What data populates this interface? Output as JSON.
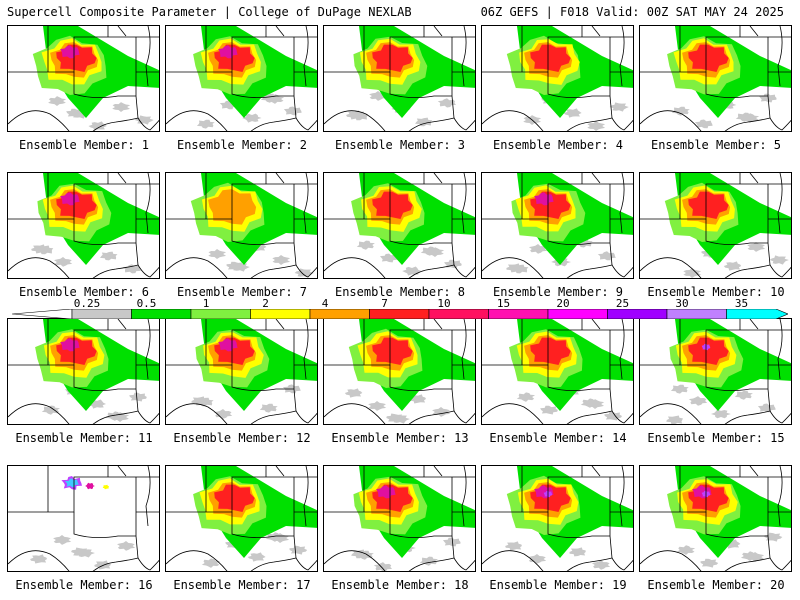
{
  "header": {
    "title_left": "Supercell Composite Parameter | College of DuPage NEXLAB",
    "title_right": "06Z GEFS | F018 Valid: 00Z SAT MAY 24 2025"
  },
  "member_label_prefix": "Ensemble Member: ",
  "members": [
    "1",
    "2",
    "3",
    "4",
    "5",
    "6",
    "7",
    "8",
    "9",
    "10",
    "11",
    "12",
    "13",
    "14",
    "15",
    "16",
    "17",
    "18",
    "19",
    "20"
  ],
  "colorbar": {
    "labels": [
      "0.25",
      "0.5",
      "1",
      "2",
      "4",
      "7",
      "10",
      "15",
      "20",
      "25",
      "30",
      "35"
    ],
    "colors": [
      "#c8c8c8",
      "#00e000",
      "#80f040",
      "#ffff00",
      "#ffa000",
      "#ff2020",
      "#ff1060",
      "#ff10b0",
      "#ff00ff",
      "#a000ff",
      "#c080ff",
      "#00ffff"
    ]
  },
  "map_colors": {
    "gray": "#c8c8c8",
    "green": "#00e000",
    "lightgreen": "#80f040",
    "yellow": "#ffff00",
    "orange": "#ffa000",
    "red": "#ff2020",
    "magenta": "#e010a0",
    "purple": "#c040ff",
    "cyan": "#40c8ff"
  }
}
